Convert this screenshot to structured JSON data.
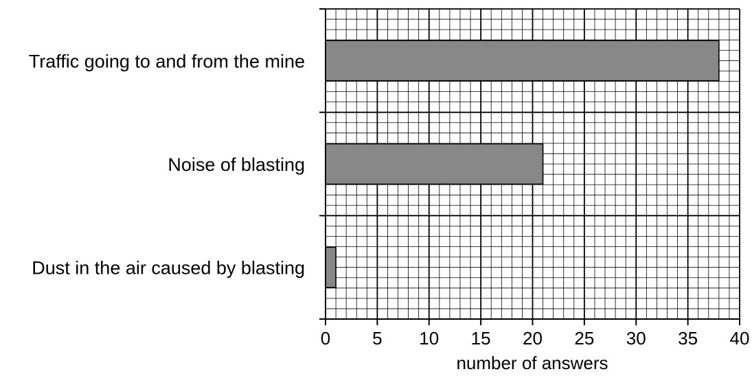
{
  "chart_data": {
    "type": "bar",
    "orientation": "horizontal",
    "title": "",
    "xlabel": "number of answers",
    "ylabel": "",
    "categories": [
      "Traffic going to and from the mine",
      "Noise of blasting",
      "Dust in the air caused by blasting"
    ],
    "values": [
      38,
      21,
      1
    ],
    "xlim": [
      0,
      40
    ],
    "x_ticks": [
      0,
      5,
      10,
      15,
      20,
      25,
      30,
      35,
      40
    ],
    "grid": true,
    "colors": {
      "bar_fill": "#888888",
      "bar_stroke": "#000000",
      "grid": "#000000",
      "background": "#ffffff"
    }
  }
}
